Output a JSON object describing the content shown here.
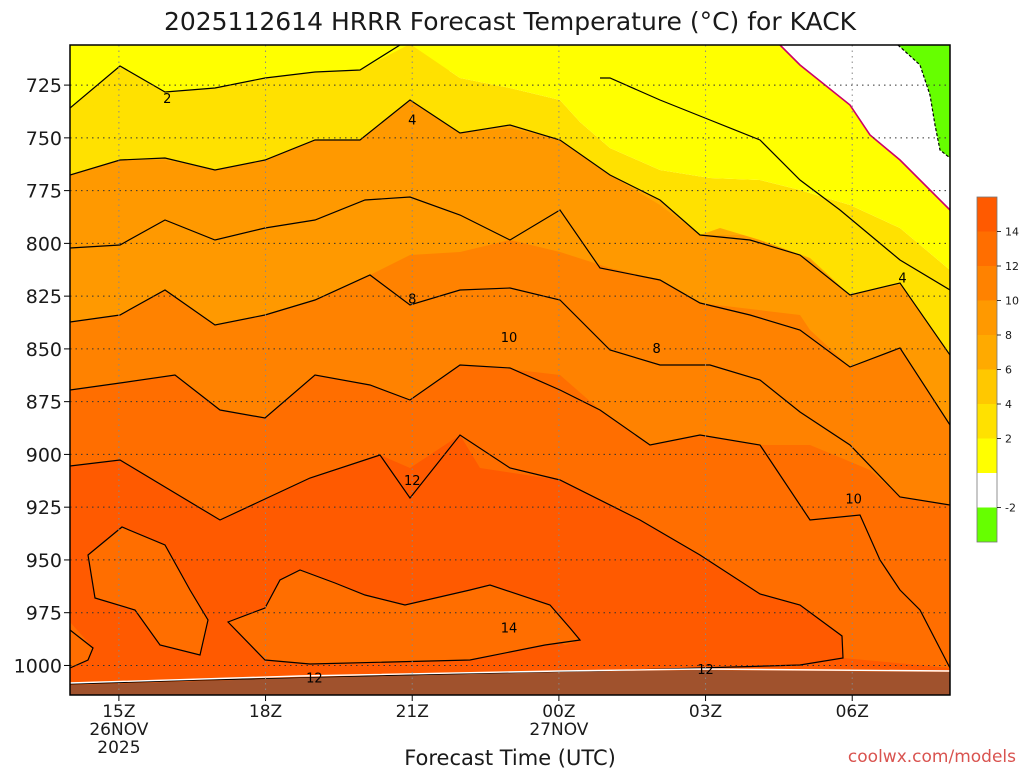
{
  "chart_data": {
    "type": "contour",
    "title": "2025112614 HRRR Forecast Temperature (°C) for KACK",
    "xlabel": "Forecast Time (UTC)",
    "ylabel": "",
    "credit": "coolwx.com/models",
    "x_ticks": [
      {
        "label": "15Z",
        "date": "26NOV",
        "year": "2025",
        "hour": 15
      },
      {
        "label": "18Z",
        "date": "",
        "year": "",
        "hour": 18
      },
      {
        "label": "21Z",
        "date": "",
        "year": "",
        "hour": 21
      },
      {
        "label": "00Z",
        "date": "27NOV",
        "year": "",
        "hour": 24
      },
      {
        "label": "03Z",
        "date": "",
        "year": "",
        "hour": 27
      },
      {
        "label": "06Z",
        "date": "",
        "year": "",
        "hour": 30
      }
    ],
    "xlim": [
      14,
      32
    ],
    "y_ticks": [
      "725",
      "750",
      "775",
      "800",
      "825",
      "850",
      "875",
      "900",
      "925",
      "950",
      "975",
      "1000"
    ],
    "y_tick_values": [
      725,
      750,
      775,
      800,
      825,
      850,
      875,
      900,
      925,
      950,
      975,
      1000
    ],
    "ylim_hpa": [
      706,
      1014
    ],
    "y_axis": "pressure (hPa), inverted",
    "grid": true,
    "contour_levels": [
      -2,
      2,
      4,
      6,
      8,
      10,
      12,
      14
    ],
    "colorbar": {
      "position": "right",
      "tick_labels": [
        "14",
        "12",
        "10",
        "8",
        "6",
        "4",
        "2",
        "-2"
      ],
      "bands": [
        {
          "from": 14,
          "to": 16,
          "color": "#ff5a00"
        },
        {
          "from": 12,
          "to": 14,
          "color": "#ff6e00"
        },
        {
          "from": 10,
          "to": 12,
          "color": "#ff8200"
        },
        {
          "from": 8,
          "to": 10,
          "color": "#ff9900"
        },
        {
          "from": 6,
          "to": 8,
          "color": "#ffaa00"
        },
        {
          "from": 4,
          "to": 6,
          "color": "#ffc800"
        },
        {
          "from": 2,
          "to": 4,
          "color": "#ffe100"
        },
        {
          "from": 0,
          "to": 2,
          "color": "#ffff00"
        },
        {
          "from": -2,
          "to": 0,
          "color": "#ffffff"
        },
        {
          "from": -4,
          "to": -2,
          "color": "#66ff00"
        }
      ]
    },
    "contour_labels": [
      {
        "text": "2",
        "hour": 15.99,
        "hpa": 731.0
      },
      {
        "text": "4",
        "hour": 21.0,
        "hpa": 741.3
      },
      {
        "text": "8",
        "hour": 21.0,
        "hpa": 826.2
      },
      {
        "text": "8",
        "hour": 26.0,
        "hpa": 849.5
      },
      {
        "text": "4",
        "hour": 31.03,
        "hpa": 816.1
      },
      {
        "text": "10",
        "hour": 22.98,
        "hpa": 844.3
      },
      {
        "text": "10",
        "hour": 30.03,
        "hpa": 920.9
      },
      {
        "text": "12",
        "hour": 21.0,
        "hpa": 912.1
      },
      {
        "text": "14",
        "hour": 22.98,
        "hpa": 982.0
      },
      {
        "text": "12",
        "hour": 19.0,
        "hpa": 1005.8
      },
      {
        "text": "12",
        "hour": 27.0,
        "hpa": 1001.7
      }
    ],
    "ground_color": "#a0522d",
    "colors": {
      "above_14": "#ff5a00",
      "12_14": "#ff6e00",
      "10_12": "#ff8200",
      "8_10": "#ff9900",
      "6_8": "#ffaa00",
      "4_6": "#ffc800",
      "2_4": "#ffe100",
      "0_2": "#ffff00",
      "m2_0": "#ffffff",
      "below_m2": "#66ff00",
      "zero_line": "#cc0066"
    }
  }
}
